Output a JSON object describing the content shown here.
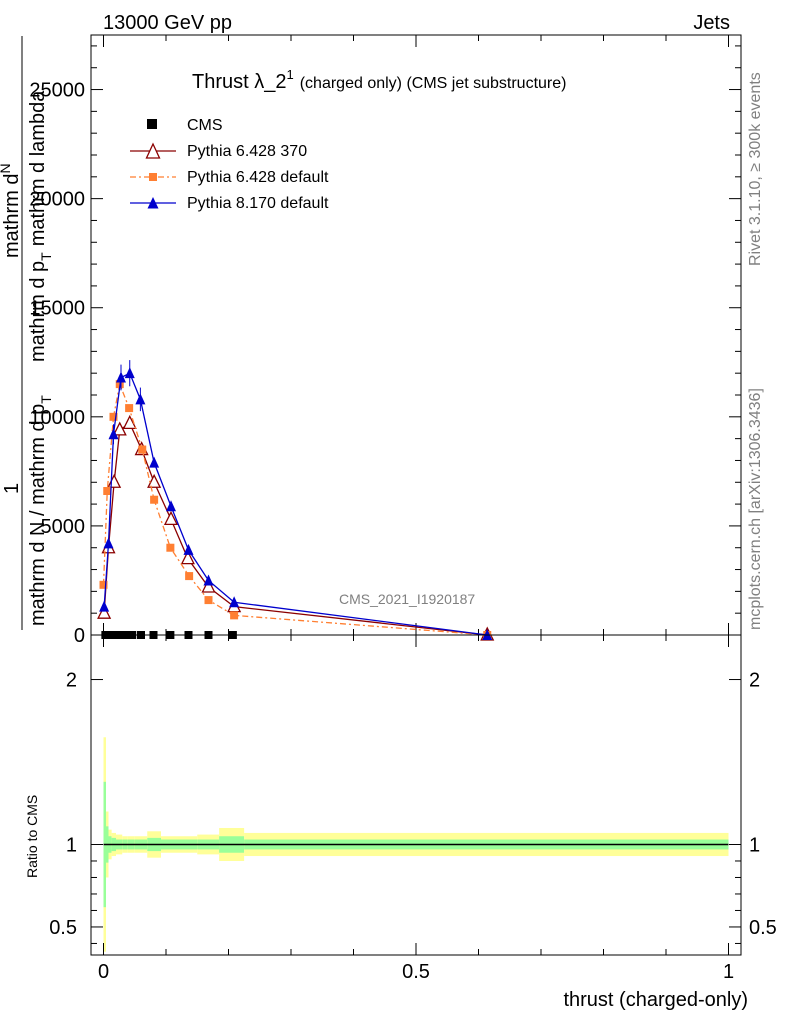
{
  "header": {
    "left": "13000 GeV pp",
    "right": "Jets"
  },
  "title": {
    "main": "Thrust λ_2",
    "sup": "1",
    "sub": "(charged only) (CMS jet substructure)"
  },
  "side": {
    "rivet": "Rivet 3.1.10, ≥ 300k events",
    "mcplots": "mcplots.cern.ch [arXiv:1306.3436]"
  },
  "watermark": "CMS_2021_I1920187",
  "ylabel_main": {
    "numerator_top": "mathrm d",
    "numerator_n": "N",
    "numerator_frac": "mathrm d p",
    "numerator_T": "T",
    "numerator_lambda": "mathrm d lambda",
    "one": "1",
    "denominator": "mathrm d N / mathrm d p",
    "denominator_T": "T"
  },
  "ylabel_ratio": "Ratio to CMS",
  "xlabel": "thrust (charged-only)",
  "colors": {
    "cms": "#000000",
    "py6_370": "#8b0000",
    "py6_default": "#ff7f32",
    "py8": "#0000cd",
    "band_yellow": "#ffff99",
    "band_green": "#99ff99"
  },
  "legend": [
    {
      "label": "CMS",
      "key": "cms"
    },
    {
      "label": "Pythia 6.428 370",
      "key": "py6_370"
    },
    {
      "label": "Pythia 6.428 default",
      "key": "py6_default"
    },
    {
      "label": "Pythia 8.170 default",
      "key": "py8"
    }
  ],
  "chart_data": [
    {
      "type": "line",
      "panel": "main",
      "xlim": [
        -0.02,
        1.02
      ],
      "ylim": [
        0,
        27500
      ],
      "yticks": [
        0,
        5000,
        10000,
        15000,
        20000,
        25000
      ],
      "ytick_labels": [
        "0",
        "5000",
        "10000",
        "15000",
        "20000",
        "25000"
      ],
      "series": [
        {
          "name": "CMS",
          "key": "cms",
          "marker": "square",
          "x": [
            0.003,
            0.009,
            0.016,
            0.025,
            0.035,
            0.046,
            0.06,
            0.08,
            0.107,
            0.136,
            0.168,
            0.207
          ],
          "y": [
            0,
            0,
            0,
            0,
            0,
            0,
            0,
            0,
            0,
            0,
            0,
            0
          ]
        },
        {
          "name": "Pythia 6.428 370",
          "key": "py6_370",
          "marker": "triangle-open",
          "x": [
            0.001,
            0.008,
            0.017,
            0.026,
            0.042,
            0.061,
            0.081,
            0.108,
            0.135,
            0.168,
            0.209,
            0.614
          ],
          "y": [
            1000,
            4000,
            7000,
            9400,
            9700,
            8500,
            7000,
            5300,
            3500,
            2200,
            1300,
            0
          ]
        },
        {
          "name": "Pythia 6.428 default",
          "key": "py6_default",
          "marker": "square",
          "x": [
            0.0,
            0.006,
            0.016,
            0.026,
            0.041,
            0.062,
            0.081,
            0.107,
            0.137,
            0.168,
            0.209,
            0.614
          ],
          "y": [
            2300,
            6600,
            10000,
            11500,
            10400,
            8500,
            6200,
            4000,
            2700,
            1600,
            900,
            0
          ]
        },
        {
          "name": "Pythia 8.170 default",
          "key": "py8",
          "marker": "triangle",
          "x": [
            0.001,
            0.008,
            0.016,
            0.028,
            0.042,
            0.059,
            0.081,
            0.108,
            0.136,
            0.168,
            0.209,
            0.614
          ],
          "y": [
            1300,
            4200,
            9200,
            11800,
            12000,
            10800,
            7900,
            5900,
            3900,
            2500,
            1500,
            0
          ]
        }
      ]
    },
    {
      "type": "area",
      "panel": "ratio",
      "xlim": [
        -0.02,
        1.02
      ],
      "ylim": [
        0.33,
        2.27
      ],
      "yticks": [
        0.5,
        1,
        2
      ],
      "ytick_labels": [
        "0.5",
        "1",
        "2"
      ],
      "xticks": [
        0,
        0.5,
        1
      ],
      "xtick_labels": [
        "0",
        "0.5",
        "1"
      ],
      "bands": {
        "edges": [
          0.0,
          0.004,
          0.008,
          0.013,
          0.02,
          0.03,
          0.038,
          0.05,
          0.07,
          0.092,
          0.12,
          0.15,
          0.185,
          0.225,
          1.0
        ],
        "yellow_half": [
          0.65,
          0.2,
          0.09,
          0.07,
          0.06,
          0.05,
          0.05,
          0.05,
          0.08,
          0.05,
          0.05,
          0.06,
          0.1,
          0.07
        ],
        "green_half": [
          0.38,
          0.11,
          0.05,
          0.04,
          0.03,
          0.03,
          0.03,
          0.03,
          0.04,
          0.03,
          0.03,
          0.03,
          0.05,
          0.03
        ]
      }
    }
  ]
}
